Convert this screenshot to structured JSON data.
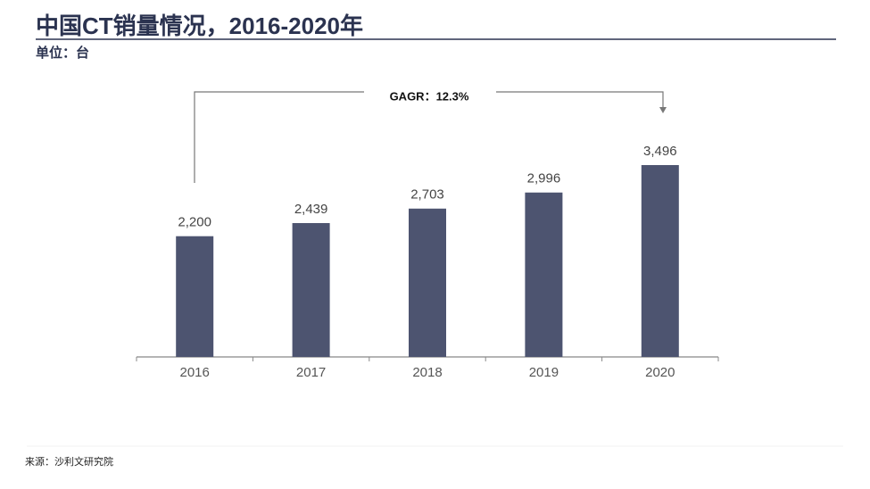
{
  "chart_data": {
    "type": "bar",
    "title": "中国CT销量情况，2016-2020年",
    "subtitle": "单位：台",
    "annotation": "GAGR：12.3%",
    "source": "来源：沙利文研究院",
    "categories": [
      "2016",
      "2017",
      "2018",
      "2019",
      "2020"
    ],
    "values": [
      2200,
      2439,
      2703,
      2996,
      3496
    ],
    "value_labels": [
      "2,200",
      "2,439",
      "2,703",
      "2,996",
      "3,496"
    ],
    "color": "#4d5470"
  }
}
